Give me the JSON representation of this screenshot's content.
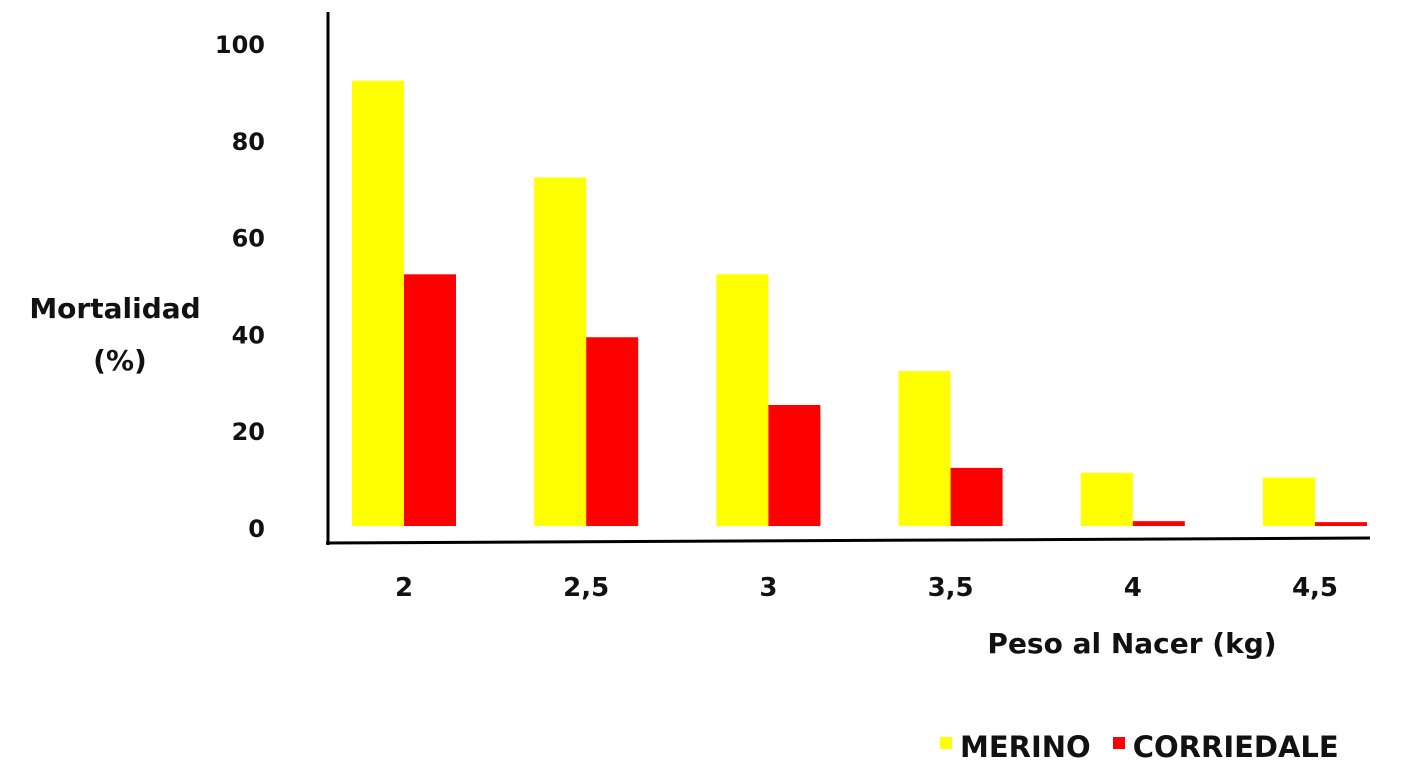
{
  "chart_data": {
    "type": "bar",
    "categories": [
      "2",
      "2,5",
      "3",
      "3,5",
      "4",
      "4,5"
    ],
    "series": [
      {
        "name": "MERINO",
        "color": "#ffff00",
        "values": [
          92,
          72,
          52,
          32,
          11,
          10
        ]
      },
      {
        "name": "CORRIEDALE",
        "color": "#ff0000",
        "values": [
          52,
          39,
          25,
          12,
          1,
          0.8
        ]
      }
    ],
    "title": "",
    "xlabel": "Peso al Nacer (kg)",
    "ylabel_line1": "Mortalidad",
    "ylabel_line2": "(%)",
    "ylim": [
      0,
      100
    ],
    "yticks": [
      "0",
      "20",
      "40",
      "60",
      "80",
      "100"
    ],
    "legend_position": "bottom-right",
    "grid": false
  }
}
